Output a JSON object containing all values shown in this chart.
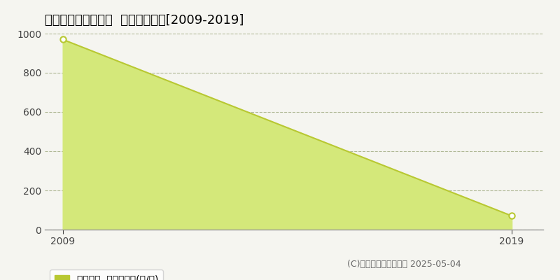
{
  "title": "東田川郡庄内町西袋  農地価格推移[2009-2019]",
  "years": [
    2009,
    2019
  ],
  "values": [
    970,
    70
  ],
  "line_color": "#b8c832",
  "fill_color": "#d4e87a",
  "marker_color": "#ffffff",
  "marker_edge_color": "#b8c832",
  "bg_color": "#f5f5f0",
  "plot_bg_color": "#f5f5f0",
  "grid_color": "#b0b896",
  "xlim": [
    2008.6,
    2019.7
  ],
  "ylim": [
    0,
    1000
  ],
  "yticks": [
    0,
    200,
    400,
    600,
    800,
    1000
  ],
  "xticks": [
    2009,
    2019
  ],
  "legend_label": "農地価格  平均坪単価(円/坪)",
  "copyright_text": "(C)土地価格ドットコム 2025-05-04",
  "title_fontsize": 13,
  "tick_fontsize": 10,
  "legend_fontsize": 10,
  "copyright_fontsize": 9
}
